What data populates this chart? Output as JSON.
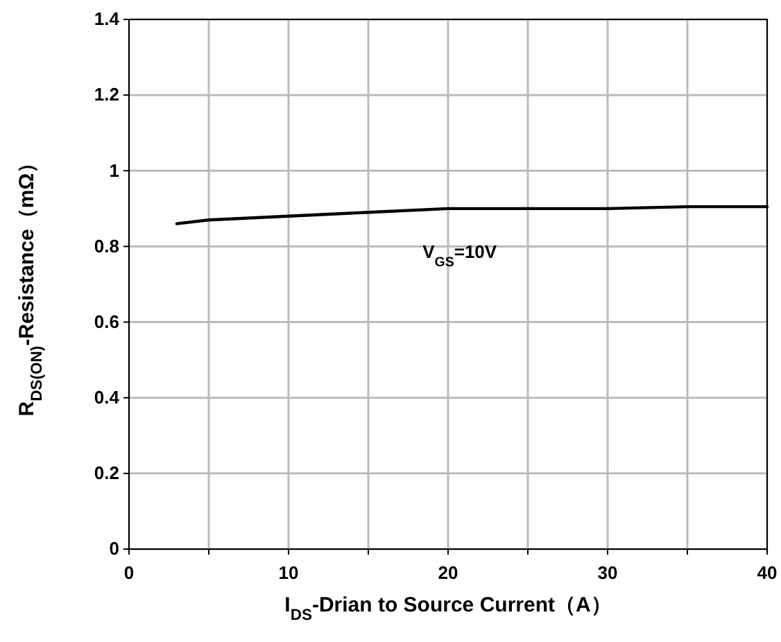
{
  "chart_data": {
    "type": "line",
    "xlabel": "I$_{DS}$-Drian to Source  Current（A）",
    "ylabel": "R$_{DS(ON)}$-Resistance（mΩ）",
    "x": [
      3,
      5,
      10,
      15,
      20,
      25,
      30,
      35,
      40
    ],
    "series": [
      {
        "color": "#000000",
        "values": [
          0.86,
          0.87,
          0.88,
          0.89,
          0.9,
          0.9,
          0.9,
          0.905,
          0.905
        ]
      }
    ],
    "xlim": [
      0,
      40
    ],
    "xticks": [
      0,
      {
        "value": 5,
        "label": null
      },
      10,
      {
        "value": 15,
        "label": null
      },
      20,
      {
        "value": 25,
        "label": null
      },
      30,
      {
        "value": 35,
        "label": null
      },
      40
    ],
    "ylim": [
      0,
      1.4
    ],
    "yticks": [
      0,
      0.2,
      0.4,
      0.6,
      0.8,
      1,
      1.2,
      1.4
    ],
    "grid": true,
    "marker": "none",
    "line_style": "solid",
    "annotations": [
      "V$_{GS}$=10V"
    ]
  }
}
